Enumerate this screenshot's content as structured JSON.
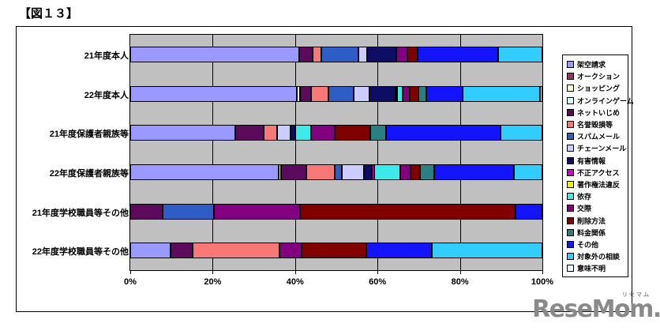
{
  "title": "【図１３】",
  "watermark": {
    "brand": "ReseMom.",
    "ruby": "リセマム"
  },
  "chart_data": {
    "type": "bar",
    "variant": "horizontal-stacked-100pct",
    "title": "【図１３】",
    "plot_bg": "#c0c0c0",
    "grid": "vertical major every 20%",
    "legend_position": "right",
    "xlim": [
      0,
      100
    ],
    "x_ticks": [
      "0%",
      "20%",
      "40%",
      "60%",
      "80%",
      "100%"
    ],
    "categories": [
      "21年度本人",
      "22年度本人",
      "21年度保護者親族等",
      "22年度保護者親族等",
      "21年度学校職員等その他",
      "22年度学校職員等その他"
    ],
    "series": [
      {
        "name": "架空請求",
        "color": "#9999ff",
        "values": [
          41,
          40.4,
          25.5,
          36,
          0,
          9.8
        ]
      },
      {
        "name": "オークション",
        "color": "#993366",
        "values": [
          0,
          0,
          0,
          0,
          0,
          0
        ]
      },
      {
        "name": "ショッピング",
        "color": "#ffffcc",
        "values": [
          0,
          0.8,
          0,
          0.6,
          0,
          0
        ]
      },
      {
        "name": "オンラインゲーム",
        "color": "#ccffff",
        "values": [
          0,
          0,
          0,
          0,
          0,
          0
        ]
      },
      {
        "name": "ネットいじめ",
        "color": "#5c0a5c",
        "values": [
          3.3,
          2.7,
          6.9,
          6.1,
          7.9,
          5.4
        ]
      },
      {
        "name": "名誉毀損等",
        "color": "#f87878",
        "values": [
          2.1,
          4.2,
          3.3,
          6.9,
          0,
          21.1
        ]
      },
      {
        "name": "スパムメール",
        "color": "#2e5ec5",
        "values": [
          9,
          6.1,
          0,
          1.7,
          12.5,
          0
        ]
      },
      {
        "name": "チェーンメール",
        "color": "#ccccff",
        "values": [
          2.1,
          3.8,
          3.1,
          5.4,
          0,
          0
        ]
      },
      {
        "name": "有害情報",
        "color": "#0d0d66",
        "values": [
          7.1,
          6.3,
          1.3,
          1.9,
          0,
          0
        ]
      },
      {
        "name": "不正アクセス",
        "color": "#cc00cc",
        "values": [
          0,
          0,
          0,
          0.7,
          0,
          0
        ]
      },
      {
        "name": "著作権法違反",
        "color": "#f2f200",
        "values": [
          0,
          0.5,
          0,
          0,
          0,
          0
        ]
      },
      {
        "name": "依存",
        "color": "#3fe9e9",
        "values": [
          0,
          1.3,
          3.8,
          6.3,
          0,
          0
        ]
      },
      {
        "name": "交際",
        "color": "#800080",
        "values": [
          2.7,
          1.7,
          5.7,
          2.5,
          20.7,
          5.2
        ]
      },
      {
        "name": "削除方法",
        "color": "#800000",
        "values": [
          2.5,
          2.2,
          8.6,
          2.3,
          52.4,
          15.7
        ]
      },
      {
        "name": "料金関係",
        "color": "#2a8080",
        "values": [
          0,
          1.8,
          3.8,
          3.4,
          0,
          0
        ]
      },
      {
        "name": "その他",
        "color": "#1414fa",
        "values": [
          19.5,
          8.8,
          27.8,
          19.3,
          6.5,
          15.9
        ]
      },
      {
        "name": "対象外の相談",
        "color": "#33ccff",
        "values": [
          10.7,
          18.8,
          10.2,
          6.9,
          0,
          26.9
        ]
      },
      {
        "name": "意味不明",
        "color": "#e6ffff",
        "values": [
          0,
          0.6,
          0,
          0,
          0,
          0
        ]
      }
    ]
  }
}
